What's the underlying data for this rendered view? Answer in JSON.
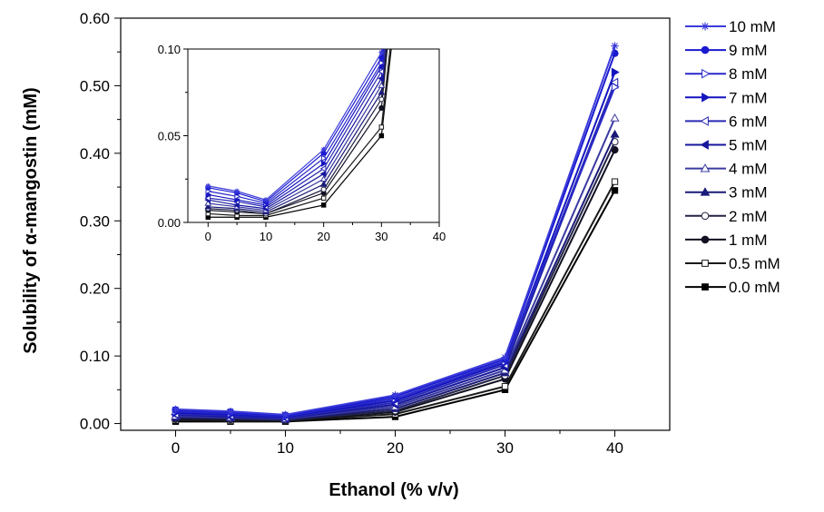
{
  "chart_data": {
    "type": "line",
    "title": "",
    "xlabel": "Ethanol (% v/v)",
    "ylabel": "Solubility of α-mangostin (mM)",
    "x": [
      0,
      5,
      10,
      20,
      30,
      40
    ],
    "xlim": [
      -5,
      45
    ],
    "ylim": [
      -0.01,
      0.6
    ],
    "x_ticks": [
      0,
      10,
      20,
      30,
      40
    ],
    "y_ticks": [
      0.0,
      0.1,
      0.2,
      0.3,
      0.4,
      0.5,
      0.6
    ],
    "x_tick_labels": [
      "0",
      "10",
      "20",
      "30",
      "40"
    ],
    "y_tick_labels": [
      "0.00",
      "0.10",
      "0.20",
      "0.30",
      "0.40",
      "0.50",
      "0.60"
    ],
    "legend_position": "right",
    "series": [
      {
        "name": "10 mM",
        "color": "#3b3bd9",
        "marker": "star",
        "values": [
          0.021,
          0.018,
          0.013,
          0.042,
          0.098,
          0.559
        ]
      },
      {
        "name": "9 mM",
        "color": "#1a1ad0",
        "marker": "circle-filled",
        "values": [
          0.02,
          0.017,
          0.012,
          0.04,
          0.095,
          0.548
        ]
      },
      {
        "name": "8 mM",
        "color": "#2828c8",
        "marker": "triangle-right-open",
        "values": [
          0.018,
          0.015,
          0.011,
          0.037,
          0.092,
          0.498
        ]
      },
      {
        "name": "7 mM",
        "color": "#1414c0",
        "marker": "triangle-right-filled",
        "values": [
          0.016,
          0.013,
          0.01,
          0.034,
          0.09,
          0.52
        ]
      },
      {
        "name": "6 mM",
        "color": "#2a2ab4",
        "marker": "triangle-left-open",
        "values": [
          0.014,
          0.012,
          0.009,
          0.031,
          0.087,
          0.505
        ]
      },
      {
        "name": "5 mM",
        "color": "#16169e",
        "marker": "triangle-left-filled",
        "values": [
          0.013,
          0.01,
          0.008,
          0.028,
          0.083,
          0.502
        ]
      },
      {
        "name": "4 mM",
        "color": "#3a3aa0",
        "marker": "triangle-up-open",
        "values": [
          0.011,
          0.009,
          0.007,
          0.025,
          0.079,
          0.452
        ]
      },
      {
        "name": "3 mM",
        "color": "#1a1a78",
        "marker": "triangle-up-filled",
        "values": [
          0.009,
          0.008,
          0.006,
          0.022,
          0.075,
          0.428
        ]
      },
      {
        "name": "2 mM",
        "color": "#222244",
        "marker": "circle-open",
        "values": [
          0.008,
          0.007,
          0.005,
          0.019,
          0.071,
          0.417
        ]
      },
      {
        "name": "1 mM",
        "color": "#111122",
        "marker": "circle-filled",
        "values": [
          0.007,
          0.006,
          0.005,
          0.017,
          0.066,
          0.405
        ]
      },
      {
        "name": "0.5 mM",
        "color": "#1a1a1a",
        "marker": "square-open",
        "values": [
          0.005,
          0.004,
          0.004,
          0.014,
          0.055,
          0.358
        ]
      },
      {
        "name": "0.0 mM",
        "color": "#000000",
        "marker": "square-filled",
        "values": [
          0.003,
          0.003,
          0.003,
          0.01,
          0.05,
          0.345
        ]
      }
    ],
    "inset": {
      "xlim": [
        -3.5,
        40
      ],
      "ylim": [
        0.0,
        0.1
      ],
      "x_ticks": [
        0,
        10,
        20,
        30,
        40
      ],
      "y_ticks": [
        0.0,
        0.05,
        0.1
      ],
      "x_tick_labels": [
        "0",
        "10",
        "20",
        "30",
        "40"
      ],
      "y_tick_labels": [
        "0.00",
        "0.05",
        "0.10"
      ]
    }
  }
}
